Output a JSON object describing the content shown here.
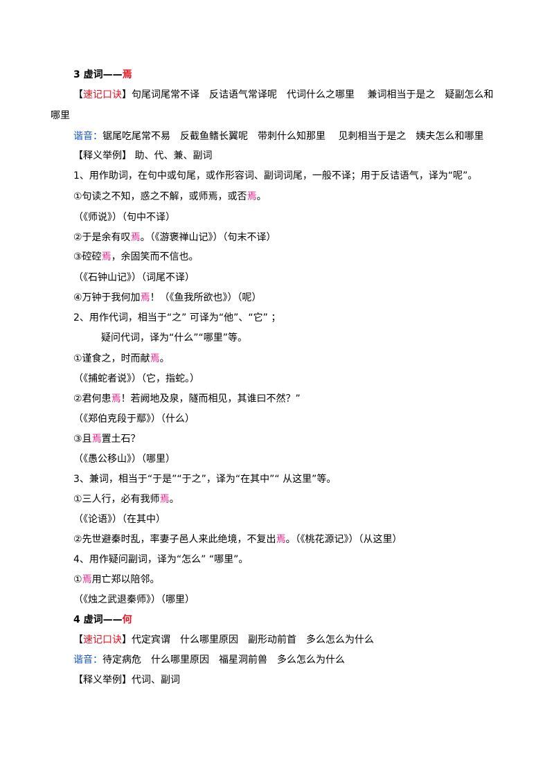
{
  "sec3": {
    "num": "3 虚词——",
    "word": "焉",
    "mnemonic_open": "【",
    "mnemonic_label": "速记口诀",
    "mnemonic_close": "】",
    "mnemonic_text": "句尾词尾常不译　反诘语气常译呢　代词什么之哪里　 兼词相当于是之　疑副怎么和",
    "mnemonic_wrap": "哪里",
    "homophone_label": "谐音：",
    "homophone_text": "锯尾吃尾常不易　反截鱼鳍长翼呢　带刺什么知那里　 见刺相当于是之　姨夫怎么和哪里",
    "examples_header": "【释义举例】 助、代、兼、副词",
    "usage1": "1、用作助词，在句中或句尾，或作形容词、副词词尾，一般不译；用于反诘语气，译为“呢”。",
    "e1a_pre": "①句读之不知，惑之不解，或师焉，或否",
    "e1a_word": "焉",
    "e1a_post": "。",
    "e1a_src": "（《师说》）（句中不译）",
    "e1b_pre": "②于是余有叹",
    "e1b_word": "焉",
    "e1b_post": "。（《游褒禅山记》）（句末不译）",
    "e1c_pre": "③硿硿",
    "e1c_word": "焉",
    "e1c_post": "，余固笑而不信也。",
    "e1c_src": "（《石钟山记》）（词尾不译）",
    "e1d_pre": "④万钟于我何加",
    "e1d_word": "焉",
    "e1d_post": "！（《鱼我所欲也》）（呢）",
    "usage2": "2、用作代词，相当于“之” 可译为“他”、“它” ；",
    "usage2b": "疑问代词，译为“什么”“哪里”等。",
    "e2a_pre": "①谨食之，时而献",
    "e2a_word": "焉",
    "e2a_post": "。",
    "e2a_src": "（《捕蛇者说》）（它，指蛇。）",
    "e2b_pre": "②君何患",
    "e2b_word": "焉",
    "e2b_post": "！若阙地及泉，隧而相见，其谁曰不然？”",
    "e2b_src": "（《郑伯克段于鄢》）（什么）",
    "e2c_pre": "③且",
    "e2c_word": "焉",
    "e2c_post": "置土石？",
    "e2c_src": "（《愚公移山》）（哪里）",
    "usage3": "3、兼词，相当于“于是”“于之”，译为“在其中”“ 从这里”等。",
    "e3a_pre": "①三人行，必有我师",
    "e3a_word": "焉",
    "e3a_post": "。",
    "e3a_src": "（《论语》）（在其中）",
    "e3b_pre": "②先世避秦时乱，率妻子邑人来此绝境，不复出",
    "e3b_word": "焉",
    "e3b_post": "。（《桃花源记》）（从这里）",
    "usage4": "4、用作疑问副词，译为“怎么” “哪里”。",
    "e4a_pre": "①",
    "e4a_word": "焉",
    "e4a_post": "用亡郑以陪邻。",
    "e4a_src": "（《烛之武退秦师》）（哪里）"
  },
  "sec4": {
    "num": "4 虚词——",
    "word": "何",
    "mnemonic_open": "【",
    "mnemonic_label": "速记口诀",
    "mnemonic_close": "】",
    "mnemonic_text": "代定宾谓　什么哪里原因　副形动前首　多么怎么为什么",
    "homophone_label": "谐音：",
    "homophone_text": "待定病危　什么哪里原因　福星洞前兽　多么怎么为什么",
    "examples_header": "【释义举例】代词、副词"
  },
  "colors": {
    "title_red": "#e8101c",
    "example_pink": "#e0208c",
    "homophone_blue": "#1a55c8"
  }
}
